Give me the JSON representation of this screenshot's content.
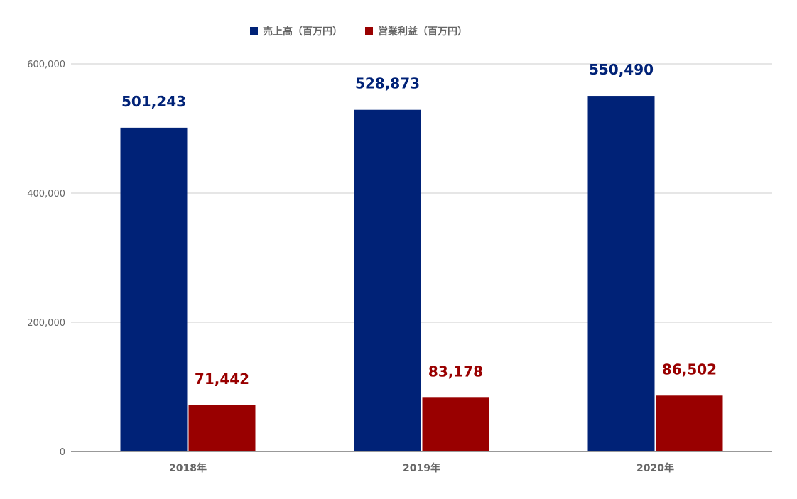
{
  "chart_data": {
    "type": "bar",
    "title": "",
    "xlabel": "",
    "ylabel": "",
    "categories": [
      "2018年",
      "2019年",
      "2020年"
    ],
    "series": [
      {
        "name": "売上高（百万円）",
        "values": [
          501243,
          528873,
          550490
        ],
        "labels": [
          "501,243",
          "528,873",
          "550,490"
        ],
        "color": "#002277"
      },
      {
        "name": "営業利益（百万円）",
        "values": [
          71442,
          83178,
          86502
        ],
        "labels": [
          "71,442",
          "83,178",
          "86,502"
        ],
        "color": "#990000"
      }
    ],
    "ylim": [
      0,
      600000
    ],
    "yticks": [
      0,
      200000,
      400000,
      600000
    ],
    "ytick_labels": [
      "0",
      "200,000",
      "400,000",
      "600,000"
    ],
    "grid": true,
    "legend": "top-center",
    "gridline_color": "#cccccc",
    "axis_color": "#333333"
  }
}
